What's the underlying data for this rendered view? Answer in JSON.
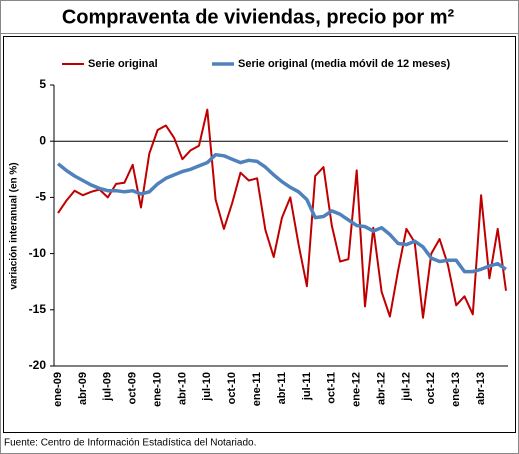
{
  "chart_data": {
    "type": "line",
    "title": "Compraventa de viviendas, precio por m²",
    "y_label": "variación interanual (en %)",
    "source": "Fuente: Centro de Información Estadística del Notariado.",
    "categories": [
      "ene-09",
      null,
      null,
      "abr-09",
      null,
      null,
      "jul-09",
      null,
      null,
      "oct-09",
      null,
      null,
      "ene-10",
      null,
      null,
      "abr-10",
      null,
      null,
      "jul-10",
      null,
      null,
      "oct-10",
      null,
      null,
      "ene-11",
      null,
      null,
      "abr-11",
      null,
      null,
      "jul-11",
      null,
      null,
      "oct-11",
      null,
      null,
      "ene-12",
      null,
      null,
      "abr-12",
      null,
      null,
      "jul-12",
      null,
      null,
      "oct-12",
      null,
      null,
      "ene-13",
      null,
      null,
      "abr-13",
      null,
      null,
      null
    ],
    "series": [
      {
        "name": "Serie original",
        "color": "#c00000",
        "width": 2,
        "values": [
          -6.4,
          -5.3,
          -4.4,
          -4.8,
          -4.5,
          -4.3,
          -5.0,
          -3.8,
          -3.7,
          -2.1,
          -5.9,
          -1.1,
          1.0,
          1.4,
          0.3,
          -1.6,
          -0.8,
          -0.4,
          2.8,
          -5.2,
          -7.8,
          -5.5,
          -2.8,
          -3.5,
          -3.3,
          -7.9,
          -10.3,
          -6.8,
          -5.0,
          -9.2,
          -12.9,
          -3.1,
          -2.3,
          -7.5,
          -10.7,
          -10.5,
          -2.6,
          -14.7,
          -7.7,
          -13.4,
          -15.6,
          -11.5,
          -7.8,
          -9.0,
          -15.7,
          -10.0,
          -8.7,
          -11.0,
          -14.6,
          -13.8,
          -15.4,
          -4.8,
          -12.2,
          -7.8,
          -13.3
        ]
      },
      {
        "name": "Serie original (media móvil de 12 meses)",
        "color": "#4f81bd",
        "width": 3.5,
        "values": [
          -2.0,
          -2.6,
          -3.1,
          -3.5,
          -3.9,
          -4.2,
          -4.4,
          -4.4,
          -4.5,
          -4.4,
          -4.7,
          -4.5,
          -3.8,
          -3.3,
          -3.0,
          -2.7,
          -2.5,
          -2.2,
          -1.9,
          -1.2,
          -1.3,
          -1.6,
          -1.9,
          -1.7,
          -1.8,
          -2.3,
          -3.0,
          -3.6,
          -4.1,
          -4.5,
          -5.2,
          -6.8,
          -6.7,
          -6.2,
          -6.5,
          -7.0,
          -7.5,
          -7.6,
          -8.0,
          -7.7,
          -8.3,
          -9.1,
          -9.2,
          -8.9,
          -9.4,
          -10.4,
          -10.7,
          -10.6,
          -10.6,
          -11.6,
          -11.6,
          -11.4,
          -11.1,
          -10.9,
          -11.4
        ]
      }
    ],
    "ylim": [
      -20,
      5
    ],
    "yticks": [
      5,
      0,
      -5,
      -10,
      -15,
      -20
    ],
    "grid": false,
    "legend": "top"
  }
}
